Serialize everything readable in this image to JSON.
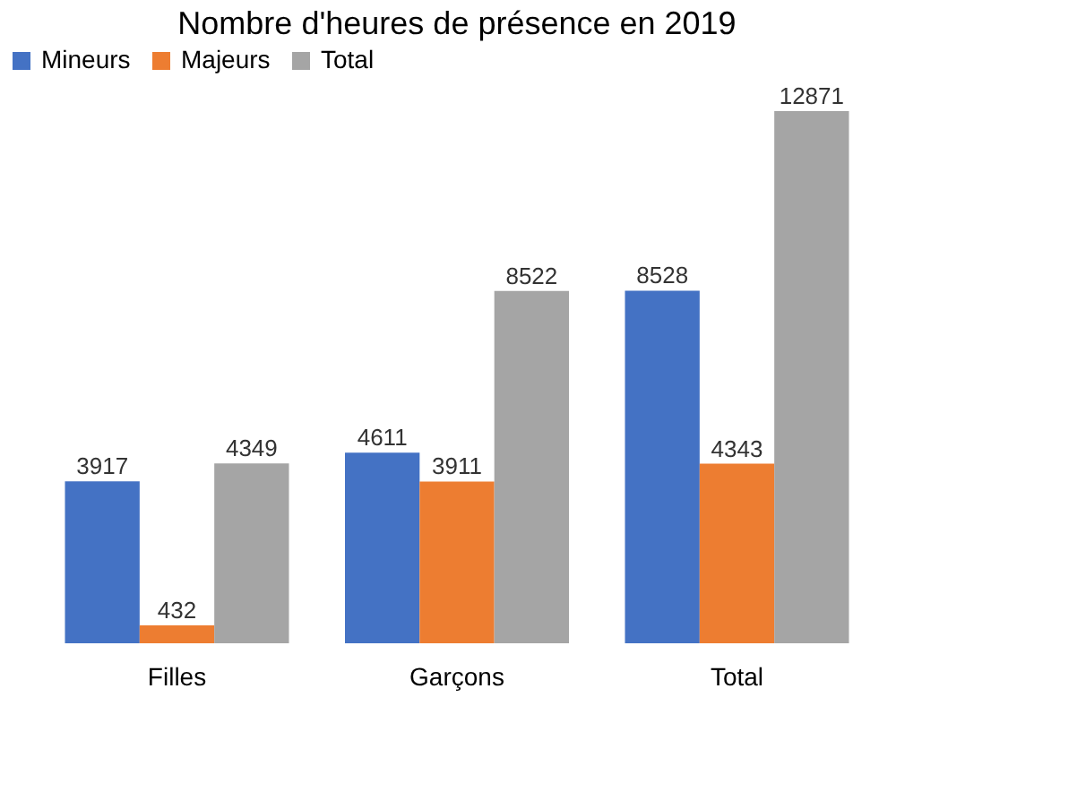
{
  "chart_data": {
    "type": "bar",
    "title": "Nombre d'heures de présence en 2019",
    "categories": [
      "Filles",
      "Garçons",
      "Total"
    ],
    "series": [
      {
        "name": "Mineurs",
        "color": "#4472c4",
        "values": [
          3917,
          4611,
          8528
        ]
      },
      {
        "name": "Majeurs",
        "color": "#ed7d31",
        "values": [
          432,
          3911,
          4343
        ]
      },
      {
        "name": "Total",
        "color": "#a5a5a5",
        "values": [
          4349,
          8522,
          12871
        ]
      }
    ],
    "data_labels": true,
    "legend": "top",
    "grid": false
  }
}
